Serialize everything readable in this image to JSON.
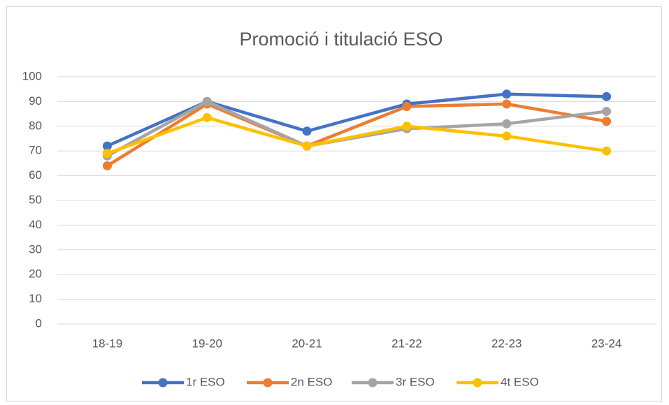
{
  "chart_data": {
    "type": "line",
    "title": "Promoció i titulació ESO",
    "categories": [
      "18-19",
      "19-20",
      "20-21",
      "21-22",
      "22-23",
      "23-24"
    ],
    "series": [
      {
        "name": "1r ESO",
        "color": "#4472c4",
        "values": [
          72,
          90,
          78,
          89,
          93,
          92
        ]
      },
      {
        "name": "2n ESO",
        "color": "#ed7d31",
        "values": [
          64,
          89,
          72,
          88,
          89,
          82
        ]
      },
      {
        "name": "3r ESO",
        "color": "#a5a5a5",
        "values": [
          68,
          90,
          72,
          79,
          81,
          86
        ]
      },
      {
        "name": "4t ESO",
        "color": "#ffc000",
        "values": [
          69,
          83.5,
          72,
          80,
          76,
          70
        ]
      }
    ],
    "ylim": [
      0,
      100
    ],
    "yticks": [
      0,
      10,
      20,
      30,
      40,
      50,
      60,
      70,
      80,
      90,
      100
    ],
    "grid": true,
    "legend": "bottom"
  }
}
